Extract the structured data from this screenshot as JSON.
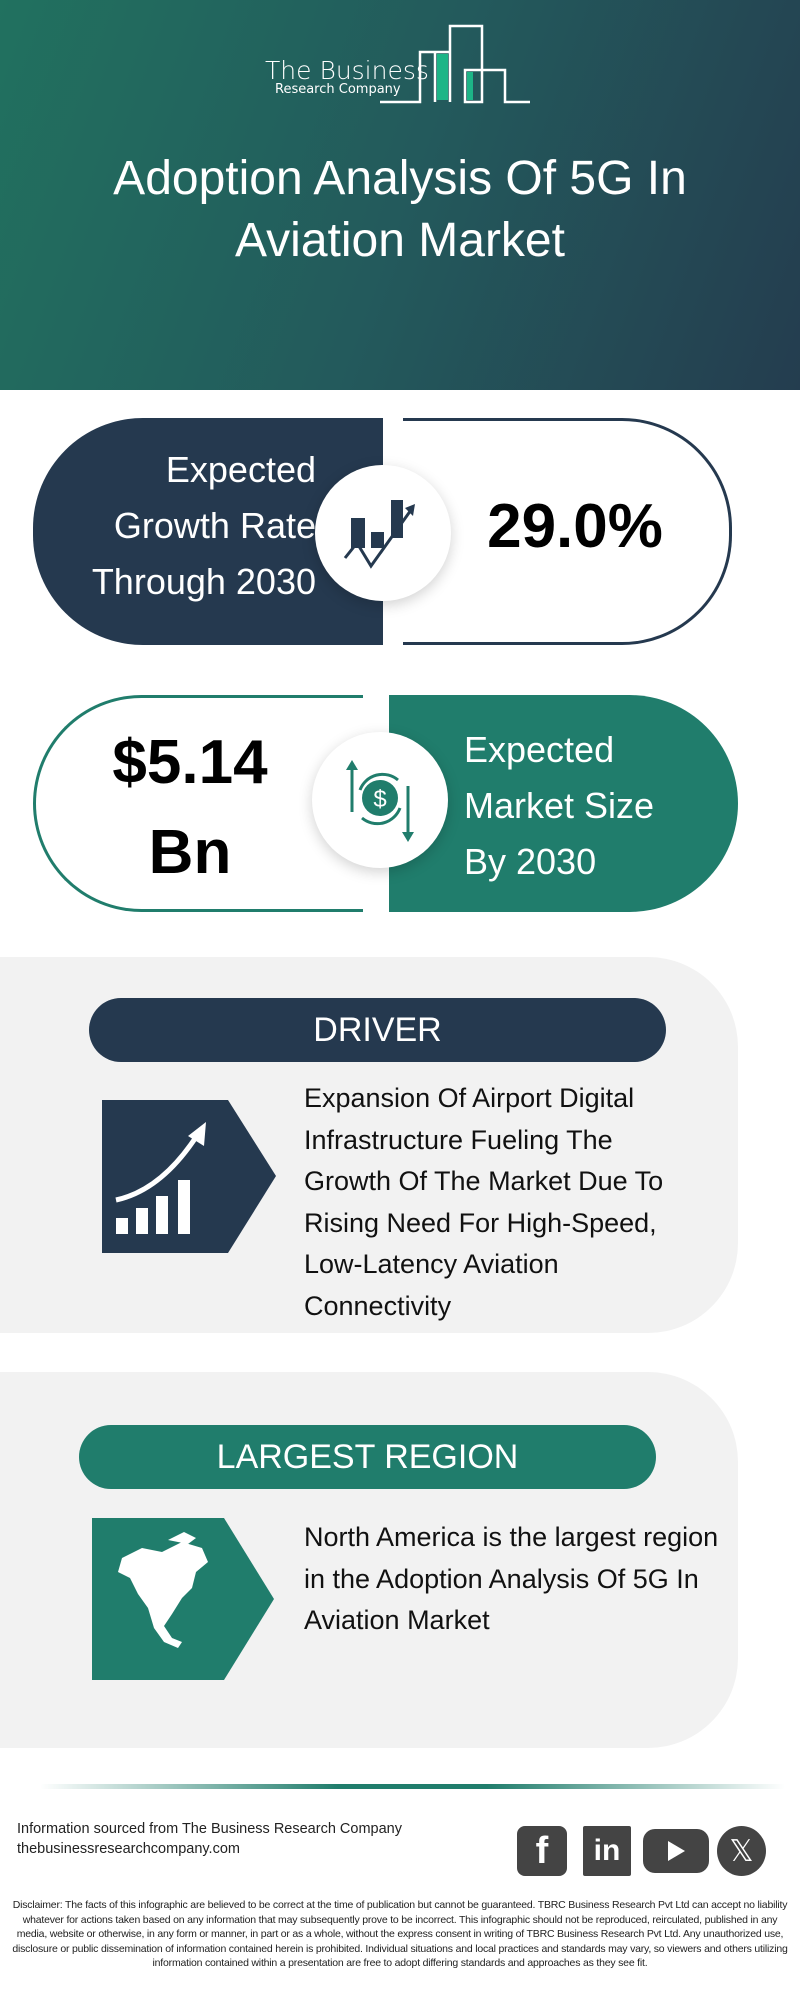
{
  "header": {
    "logo": {
      "line1": "The Business",
      "line2": "Research Company"
    },
    "title": "Adoption Analysis Of 5G In Aviation Market"
  },
  "growth": {
    "label_lines": [
      "Expected",
      "Growth Rate",
      "Through 2030"
    ],
    "value": "29.0%",
    "icon": "growth-chart-icon"
  },
  "market_size": {
    "value_lines": [
      "$5.14",
      "Bn"
    ],
    "label_lines": [
      "Expected",
      "Market Size",
      "By 2030"
    ],
    "icon": "dollar-cycle-icon"
  },
  "driver": {
    "heading": "DRIVER",
    "text": "Expansion Of Airport Digital Infrastructure Fueling The Growth Of The Market Due To Rising Need For High-Speed, Low-Latency Aviation Connectivity",
    "icon": "rising-bars-icon"
  },
  "region": {
    "heading": "LARGEST REGION",
    "text": "North America is the largest region in the Adoption Analysis Of 5G In Aviation Market",
    "icon": "north-america-map-icon"
  },
  "footer": {
    "source": "Information sourced from The Business Research Company",
    "website": "thebusinessresearchcompany.com",
    "social": [
      "facebook",
      "linkedin",
      "youtube",
      "x"
    ],
    "disclaimer": "Disclaimer: The facts of this infographic are believed to be correct at the time of publication but cannot be guaranteed. TBRC Business Research Pvt Ltd can accept no liability whatever for actions taken based on any information that may subsequently prove to be incorrect. This infographic should not be reproduced, reirculated, published in any media, website or otherwise, in any form or manner, in part or as a whole, without the express consent in writing of TBRC Business Research Pvt Ltd. Any unauthorized use, disclosure or public dissemination of information contained herein is prohibited. Individual situations and local practices and standards may vary, so viewers and others utilizing information contained within a presentation are free to adopt differing standards and approaches as they see fit."
  },
  "colors": {
    "navy": "#25394f",
    "teal": "#207d6c",
    "gray_bg": "#f2f2f2",
    "accent_green": "#1db587"
  }
}
